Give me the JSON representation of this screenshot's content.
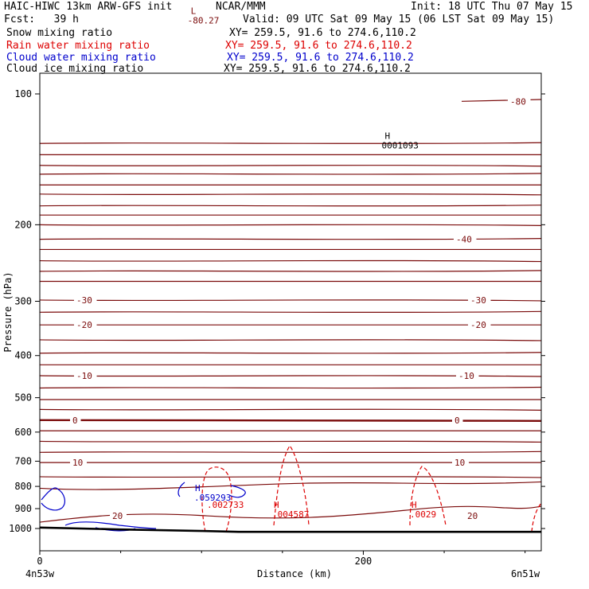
{
  "header": {
    "model": "HAIC-HIWC 13km ARW-GFS init",
    "org": "NCAR/MMM",
    "init": "Init: 18 UTC Thu 07 May 15",
    "fcst": "Fcst:   39 h",
    "valid": "Valid: 09 UTC Sat 09 May 15 (06 LST Sat 09 May 15)"
  },
  "fields": [
    {
      "label": "Snow mixing ratio",
      "xy": "XY= 259.5, 91.6 to 274.6,110.2",
      "color": "#000000"
    },
    {
      "label": "Rain water mixing ratio",
      "xy": "XY= 259.5, 91.6 to 274.6,110.2",
      "color": "#dd0000"
    },
    {
      "label": "Cloud water mixing ratio",
      "xy": "XY= 259.5, 91.6 to 274.6,110.2",
      "color": "#0000cc"
    },
    {
      "label": "Cloud ice mixing ratio",
      "xy": "XY= 259.5, 91.6 to 274.6,110.2",
      "color": "#000000"
    }
  ],
  "colors": {
    "temperature": "#7a0a0a",
    "rain": "#dd0000",
    "cloud_water": "#0000cc",
    "terrain": "#000000"
  },
  "chart_data": {
    "type": "line",
    "xlabel": "Distance (km)",
    "ylabel": "Pressure (hPa)",
    "xlim": [
      0,
      310
    ],
    "ylim": [
      50,
      1050
    ],
    "y_scale": "log",
    "x_ticks": [
      {
        "value": 0,
        "label": "0"
      },
      {
        "value": 200,
        "label": "200"
      }
    ],
    "y_ticks": [
      100,
      200,
      300,
      400,
      500,
      600,
      700,
      800,
      900,
      1000
    ],
    "endpoint_labels": {
      "left": "4n53w",
      "right": "6n51w"
    },
    "temperature_isotherms": [
      {
        "label": "-80.27",
        "pressure": 62
      },
      {
        "label": "-80",
        "pressure": 104
      },
      {
        "label": "-40",
        "pressure": 216
      },
      {
        "label": "-30",
        "pressure": 298
      },
      {
        "label": "-20",
        "pressure": 340
      },
      {
        "label": "-10",
        "pressure": 445
      },
      {
        "label": "0",
        "pressure": 563
      },
      {
        "label": "10",
        "pressure": 705
      },
      {
        "label": "20",
        "pressure": 935
      }
    ],
    "temperature_extrema": [
      {
        "marker": "L",
        "label": "-80.27",
        "x": 50,
        "pressure": 66
      },
      {
        "marker": "H",
        "label": "0001093",
        "x": 170,
        "pressure": 128
      }
    ],
    "rain_maxima": [
      {
        "marker": "H",
        "label": ".004587",
        "x": 145,
        "pressure": 985
      },
      {
        "marker": "H",
        "label": ".0029",
        "x": 232,
        "pressure": 985
      },
      {
        "label": ".002733",
        "x": 114,
        "pressure": 960
      }
    ],
    "cloud_water_maxima": [
      {
        "marker": "H",
        "label": ".059293",
        "x": 96,
        "pressure": 935
      }
    ],
    "terrain_pressure": [
      {
        "x": 0,
        "p": 995
      },
      {
        "x": 50,
        "p": 1005
      },
      {
        "x": 100,
        "p": 1013
      },
      {
        "x": 123,
        "p": 1018
      },
      {
        "x": 200,
        "p": 1018
      },
      {
        "x": 310,
        "p": 1018
      }
    ]
  }
}
